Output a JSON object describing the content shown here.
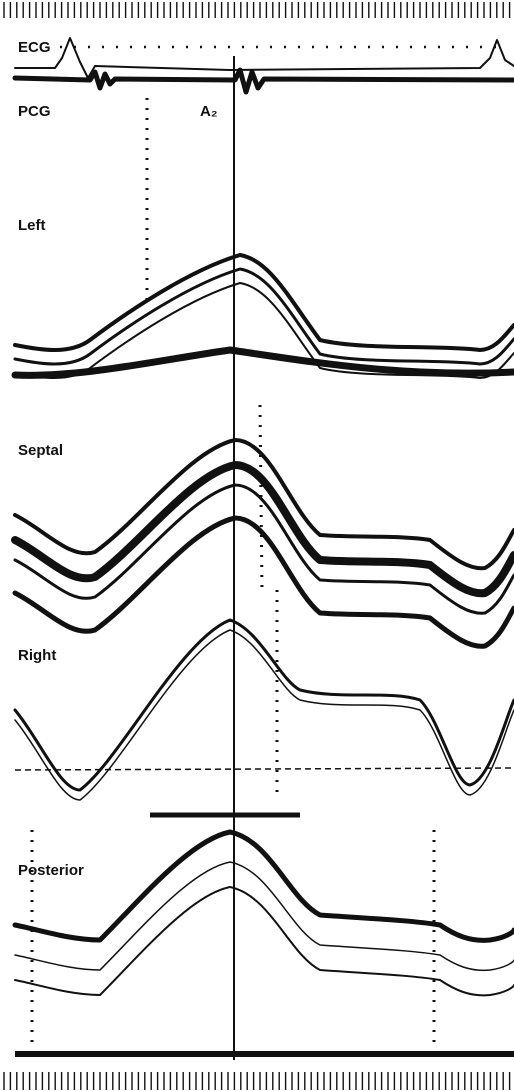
{
  "labels": {
    "ecg": "ECG",
    "pcg": "PCG",
    "a2": "A₂",
    "left": "Left",
    "septal": "Septal",
    "right": "Right",
    "posterior": "Posterior"
  }
}
